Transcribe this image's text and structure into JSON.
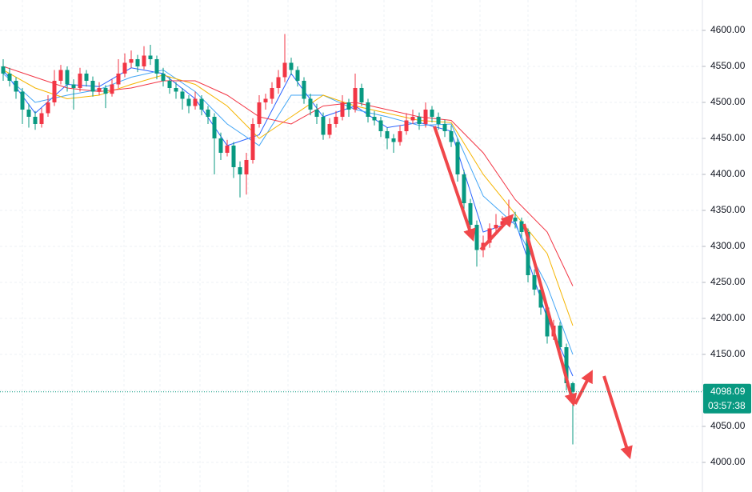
{
  "chart_data": {
    "type": "candlestick",
    "up_color": "#f23645",
    "down_color": "#089981",
    "ylim": [
      3958.9,
      4642.2
    ],
    "yticks": [
      {
        "value": 4000,
        "label": "4000.00"
      },
      {
        "value": 4050,
        "label": "4050.00"
      },
      {
        "value": 4100,
        "label": "4100.00"
      },
      {
        "value": 4150,
        "label": "4150.00"
      },
      {
        "value": 4200,
        "label": "4200.00"
      },
      {
        "value": 4250,
        "label": "4250.00"
      },
      {
        "value": 4300,
        "label": "4300.00"
      },
      {
        "value": 4350,
        "label": "4350.00"
      },
      {
        "value": 4400,
        "label": "4400.00"
      },
      {
        "value": 4450,
        "label": "4450.00"
      },
      {
        "value": 4500,
        "label": "4500.00"
      },
      {
        "value": 4550,
        "label": "4550.00"
      },
      {
        "value": 4600,
        "label": "4600.00"
      }
    ],
    "grid": true,
    "countdown": "03:57:38",
    "candles": [
      [
        4550,
        4560,
        4530,
        4540
      ],
      [
        4540,
        4548,
        4522,
        4530
      ],
      [
        4530,
        4535,
        4505,
        4515
      ],
      [
        4515,
        4520,
        4470,
        4490
      ],
      [
        4490,
        4498,
        4465,
        4480
      ],
      [
        4480,
        4488,
        4462,
        4470
      ],
      [
        4470,
        4492,
        4465,
        4485
      ],
      [
        4485,
        4510,
        4480,
        4500
      ],
      [
        4500,
        4545,
        4495,
        4530
      ],
      [
        4530,
        4552,
        4525,
        4545
      ],
      [
        4545,
        4550,
        4515,
        4525
      ],
      [
        4525,
        4532,
        4490,
        4520
      ],
      [
        4520,
        4548,
        4515,
        4540
      ],
      [
        4540,
        4545,
        4522,
        4530
      ],
      [
        4530,
        4536,
        4508,
        4515
      ],
      [
        4515,
        4528,
        4510,
        4520
      ],
      [
        4520,
        4524,
        4492,
        4512
      ],
      [
        4512,
        4532,
        4508,
        4525
      ],
      [
        4525,
        4560,
        4520,
        4540
      ],
      [
        4540,
        4568,
        4535,
        4555
      ],
      [
        4555,
        4572,
        4548,
        4560
      ],
      [
        4560,
        4566,
        4542,
        4550
      ],
      [
        4550,
        4578,
        4546,
        4565
      ],
      [
        4565,
        4580,
        4552,
        4560
      ],
      [
        4560,
        4565,
        4532,
        4540
      ],
      [
        4540,
        4548,
        4522,
        4530
      ],
      [
        4530,
        4535,
        4512,
        4520
      ],
      [
        4520,
        4528,
        4505,
        4515
      ],
      [
        4515,
        4520,
        4490,
        4505
      ],
      [
        4505,
        4510,
        4485,
        4495
      ],
      [
        4495,
        4515,
        4490,
        4505
      ],
      [
        4505,
        4510,
        4482,
        4490
      ],
      [
        4490,
        4495,
        4470,
        4480
      ],
      [
        4480,
        4485,
        4400,
        4450
      ],
      [
        4450,
        4458,
        4420,
        4430
      ],
      [
        4430,
        4448,
        4425,
        4440
      ],
      [
        4440,
        4445,
        4395,
        4410
      ],
      [
        4410,
        4418,
        4368,
        4400
      ],
      [
        4400,
        4430,
        4372,
        4420
      ],
      [
        4420,
        4478,
        4415,
        4470
      ],
      [
        4470,
        4510,
        4465,
        4500
      ],
      [
        4500,
        4512,
        4490,
        4505
      ],
      [
        4505,
        4528,
        4498,
        4520
      ],
      [
        4520,
        4545,
        4512,
        4535
      ],
      [
        4535,
        4595,
        4528,
        4555
      ],
      [
        4555,
        4562,
        4538,
        4545
      ],
      [
        4545,
        4550,
        4522,
        4530
      ],
      [
        4530,
        4535,
        4498,
        4505
      ],
      [
        4505,
        4512,
        4482,
        4490
      ],
      [
        4490,
        4498,
        4470,
        4480
      ],
      [
        4480,
        4486,
        4448,
        4455
      ],
      [
        4455,
        4478,
        4450,
        4470
      ],
      [
        4470,
        4488,
        4465,
        4480
      ],
      [
        4480,
        4510,
        4475,
        4500
      ],
      [
        4500,
        4505,
        4480,
        4490
      ],
      [
        4490,
        4540,
        4486,
        4520
      ],
      [
        4520,
        4526,
        4495,
        4500
      ],
      [
        4500,
        4505,
        4472,
        4480
      ],
      [
        4480,
        4488,
        4468,
        4475
      ],
      [
        4475,
        4480,
        4452,
        4460
      ],
      [
        4460,
        4465,
        4435,
        4450
      ],
      [
        4450,
        4456,
        4430,
        4445
      ],
      [
        4445,
        4468,
        4440,
        4460
      ],
      [
        4460,
        4485,
        4455,
        4475
      ],
      [
        4475,
        4490,
        4470,
        4480
      ],
      [
        4480,
        4486,
        4462,
        4470
      ],
      [
        4470,
        4500,
        4465,
        4490
      ],
      [
        4490,
        4495,
        4472,
        4480
      ],
      [
        4480,
        4486,
        4462,
        4470
      ],
      [
        4470,
        4476,
        4452,
        4460
      ],
      [
        4460,
        4468,
        4438,
        4445
      ],
      [
        4445,
        4450,
        4390,
        4400
      ],
      [
        4400,
        4406,
        4352,
        4360
      ],
      [
        4360,
        4366,
        4322,
        4330
      ],
      [
        4330,
        4336,
        4272,
        4295
      ],
      [
        4295,
        4315,
        4285,
        4305
      ],
      [
        4305,
        4332,
        4298,
        4325
      ],
      [
        4325,
        4345,
        4318,
        4330
      ],
      [
        4330,
        4342,
        4325,
        4335
      ],
      [
        4335,
        4365,
        4330,
        4340
      ],
      [
        4340,
        4348,
        4325,
        4335
      ],
      [
        4335,
        4340,
        4312,
        4320
      ],
      [
        4320,
        4325,
        4250,
        4260
      ],
      [
        4260,
        4268,
        4232,
        4240
      ],
      [
        4240,
        4246,
        4205,
        4215
      ],
      [
        4215,
        4220,
        4165,
        4175
      ],
      [
        4175,
        4198,
        4170,
        4190
      ],
      [
        4190,
        4195,
        4150,
        4160
      ],
      [
        4160,
        4165,
        4100,
        4110
      ],
      [
        4110,
        4112,
        4025,
        4098.09
      ]
    ],
    "series": [
      {
        "color": "#2962ff",
        "x": [
          0,
          5,
          10,
          15,
          20,
          25,
          30,
          35,
          40,
          45,
          50,
          55,
          60,
          65,
          70,
          75,
          80,
          85,
          89
        ],
        "values": [
          4545,
          4485,
          4525,
          4522,
          4548,
          4540,
          4505,
          4440,
          4455,
          4540,
          4480,
          4495,
          4465,
          4472,
          4460,
          4320,
          4335,
          4200,
          4120
        ]
      },
      {
        "color": "#42a5f5",
        "x": [
          0,
          5,
          10,
          15,
          20,
          25,
          30,
          35,
          40,
          45,
          50,
          55,
          60,
          65,
          70,
          75,
          80,
          85,
          89
        ],
        "values": [
          4540,
          4500,
          4510,
          4518,
          4535,
          4545,
          4515,
          4470,
          4440,
          4510,
          4510,
          4490,
          4480,
          4468,
          4470,
          4370,
          4330,
          4245,
          4150
        ]
      },
      {
        "color": "#f5b400",
        "x": [
          0,
          5,
          10,
          15,
          20,
          25,
          30,
          35,
          40,
          45,
          50,
          55,
          60,
          65,
          70,
          75,
          80,
          85,
          89
        ],
        "values": [
          4545,
          4520,
          4505,
          4510,
          4525,
          4538,
          4525,
          4495,
          4450,
          4480,
          4510,
          4495,
          4485,
          4475,
          4472,
          4400,
          4345,
          4290,
          4190
        ]
      },
      {
        "color": "#f23645",
        "x": [
          0,
          5,
          10,
          15,
          20,
          25,
          30,
          35,
          40,
          45,
          50,
          55,
          60,
          65,
          70,
          75,
          80,
          85,
          89
        ],
        "values": [
          4550,
          4535,
          4520,
          4515,
          4520,
          4530,
          4530,
          4510,
          4480,
          4470,
          4495,
          4500,
          4490,
          4480,
          4475,
          4430,
          4365,
          4320,
          4245
        ]
      }
    ]
  }
}
